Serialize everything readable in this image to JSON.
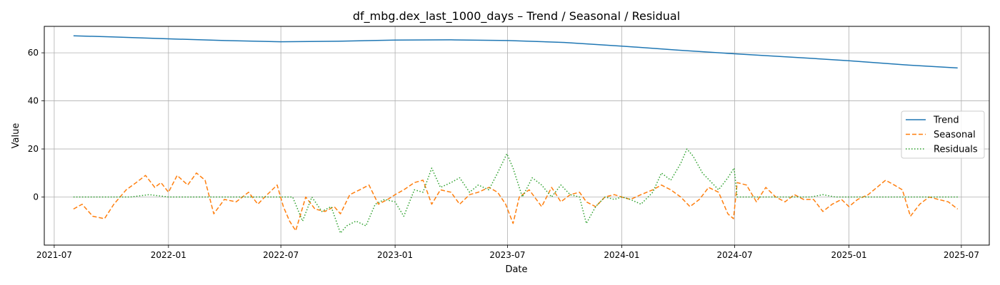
{
  "chart_data": {
    "type": "line",
    "title": "df_mbg.dex_last_1000_days – Trend / Seasonal / Residual",
    "xlabel": "Date",
    "ylabel": "Value",
    "xlim": [
      "2021-06-15",
      "2025-08-15"
    ],
    "ylim": [
      -20,
      71
    ],
    "x_ticks": [
      "2021-07",
      "2022-01",
      "2022-07",
      "2023-01",
      "2023-07",
      "2024-01",
      "2024-07",
      "2025-01",
      "2025-07"
    ],
    "y_ticks": [
      0,
      20,
      40,
      60
    ],
    "grid": true,
    "legend": {
      "position": "right"
    },
    "series": [
      {
        "name": "Trend",
        "color": "#1f77b4",
        "style": "solid",
        "x": [
          "2021-08-01",
          "2021-10-01",
          "2022-01-01",
          "2022-04-01",
          "2022-07-01",
          "2022-10-01",
          "2023-01-01",
          "2023-04-01",
          "2023-07-01",
          "2023-10-01",
          "2024-01-01",
          "2024-04-01",
          "2024-07-01",
          "2024-10-01",
          "2025-01-01",
          "2025-04-01",
          "2025-06-25"
        ],
        "y": [
          67.1,
          66.6,
          65.8,
          65.1,
          64.6,
          64.8,
          65.3,
          65.4,
          65.1,
          64.3,
          62.8,
          61.1,
          59.6,
          58.2,
          56.7,
          55.0,
          53.7
        ]
      },
      {
        "name": "Seasonal",
        "color": "#ff7f0e",
        "style": "dashed",
        "x": [
          "2021-08-01",
          "2021-08-15",
          "2021-09-01",
          "2021-09-20",
          "2021-10-05",
          "2021-10-25",
          "2021-11-10",
          "2021-11-25",
          "2021-12-10",
          "2021-12-20",
          "2022-01-01",
          "2022-01-15",
          "2022-02-01",
          "2022-02-15",
          "2022-03-01",
          "2022-03-15",
          "2022-04-01",
          "2022-04-20",
          "2022-05-10",
          "2022-05-25",
          "2022-06-05",
          "2022-06-25",
          "2022-07-05",
          "2022-07-15",
          "2022-07-25",
          "2022-08-10",
          "2022-08-25",
          "2022-09-10",
          "2022-09-25",
          "2022-10-05",
          "2022-10-20",
          "2022-11-05",
          "2022-11-20",
          "2022-12-05",
          "2022-12-20",
          "2023-01-01",
          "2023-01-15",
          "2023-02-01",
          "2023-02-15",
          "2023-03-01",
          "2023-03-15",
          "2023-04-01",
          "2023-04-15",
          "2023-05-01",
          "2023-05-15",
          "2023-06-01",
          "2023-06-15",
          "2023-06-28",
          "2023-07-10",
          "2023-07-20",
          "2023-08-05",
          "2023-08-25",
          "2023-09-10",
          "2023-09-25",
          "2023-10-10",
          "2023-10-25",
          "2023-11-05",
          "2023-11-20",
          "2023-12-05",
          "2023-12-20",
          "2024-01-01",
          "2024-01-15",
          "2024-02-01",
          "2024-02-20",
          "2024-03-05",
          "2024-03-20",
          "2024-04-05",
          "2024-04-20",
          "2024-05-05",
          "2024-05-20",
          "2024-06-05",
          "2024-06-20",
          "2024-06-29",
          "2024-07-05",
          "2024-07-20",
          "2024-08-05",
          "2024-08-20",
          "2024-09-05",
          "2024-09-20",
          "2024-10-05",
          "2024-10-20",
          "2024-11-05",
          "2024-11-20",
          "2024-12-05",
          "2024-12-20",
          "2025-01-01",
          "2025-01-15",
          "2025-02-01",
          "2025-02-15",
          "2025-03-01",
          "2025-03-15",
          "2025-03-28",
          "2025-04-10",
          "2025-04-25",
          "2025-05-10",
          "2025-05-25",
          "2025-06-10",
          "2025-06-25"
        ],
        "y": [
          -5,
          -3,
          -8,
          -9,
          -3,
          3,
          6,
          9,
          4,
          6,
          2,
          9,
          5,
          10,
          7,
          -7,
          -1,
          -2,
          2,
          -3,
          0,
          5,
          -4,
          -10,
          -14,
          0,
          -5,
          -6,
          -4,
          -7,
          1,
          3,
          5,
          -3,
          -1,
          1,
          3,
          6,
          7,
          -3,
          3,
          2,
          -3,
          1,
          2,
          4,
          2,
          -3,
          -11,
          0,
          3,
          -4,
          4,
          -2,
          1,
          2,
          -2,
          -4,
          0,
          1,
          0,
          -1,
          1,
          3,
          5,
          3,
          0,
          -4,
          -1,
          4,
          2,
          -7,
          -9,
          6,
          5,
          -2,
          4,
          0,
          -2,
          1,
          -1,
          -1,
          -6,
          -3,
          -1,
          -4,
          -1,
          1,
          4,
          7,
          5,
          3,
          -8,
          -3,
          0,
          -1,
          -2,
          -5
        ]
      },
      {
        "name": "Residuals",
        "color": "#2ca02c",
        "style": "dotted",
        "x": [
          "2021-08-01",
          "2021-09-01",
          "2021-10-01",
          "2021-11-01",
          "2021-12-01",
          "2022-01-01",
          "2022-02-01",
          "2022-03-01",
          "2022-04-01",
          "2022-05-01",
          "2022-06-01",
          "2022-07-01",
          "2022-07-20",
          "2022-08-05",
          "2022-08-20",
          "2022-09-05",
          "2022-09-20",
          "2022-10-05",
          "2022-10-15",
          "2022-10-30",
          "2022-11-15",
          "2022-11-30",
          "2022-12-15",
          "2023-01-01",
          "2023-01-15",
          "2023-02-01",
          "2023-02-15",
          "2023-03-01",
          "2023-03-15",
          "2023-04-01",
          "2023-04-15",
          "2023-05-01",
          "2023-05-15",
          "2023-06-01",
          "2023-06-15",
          "2023-06-30",
          "2023-07-10",
          "2023-07-25",
          "2023-08-10",
          "2023-08-25",
          "2023-09-10",
          "2023-09-25",
          "2023-10-10",
          "2023-10-25",
          "2023-11-05",
          "2023-11-20",
          "2023-12-05",
          "2023-12-20",
          "2024-01-01",
          "2024-01-15",
          "2024-02-01",
          "2024-02-20",
          "2024-03-05",
          "2024-03-20",
          "2024-04-05",
          "2024-04-15",
          "2024-04-25",
          "2024-05-10",
          "2024-05-25",
          "2024-06-05",
          "2024-06-20",
          "2024-06-30",
          "2024-07-05",
          "2024-08-01",
          "2024-09-01",
          "2024-10-01",
          "2024-11-01",
          "2024-11-20",
          "2024-12-10",
          "2025-01-01",
          "2025-02-01",
          "2025-03-01",
          "2025-04-01",
          "2025-05-01",
          "2025-06-01",
          "2025-06-25"
        ],
        "y": [
          0,
          0,
          0,
          0,
          1,
          0,
          0,
          0,
          0,
          0,
          0,
          0,
          0,
          -10,
          0,
          -6,
          -4,
          -15,
          -12,
          -10,
          -12,
          -3,
          -1,
          -2,
          -8,
          3,
          2,
          12,
          4,
          6,
          8,
          2,
          5,
          3,
          10,
          18,
          12,
          0,
          8,
          5,
          0,
          5,
          1,
          0,
          -11,
          -4,
          0,
          -1,
          0,
          -1,
          -3,
          2,
          10,
          7,
          14,
          20,
          17,
          10,
          6,
          3,
          8,
          12,
          0,
          0,
          0,
          0,
          0,
          1,
          0,
          0,
          0,
          0,
          0,
          0,
          0,
          0
        ]
      }
    ]
  }
}
